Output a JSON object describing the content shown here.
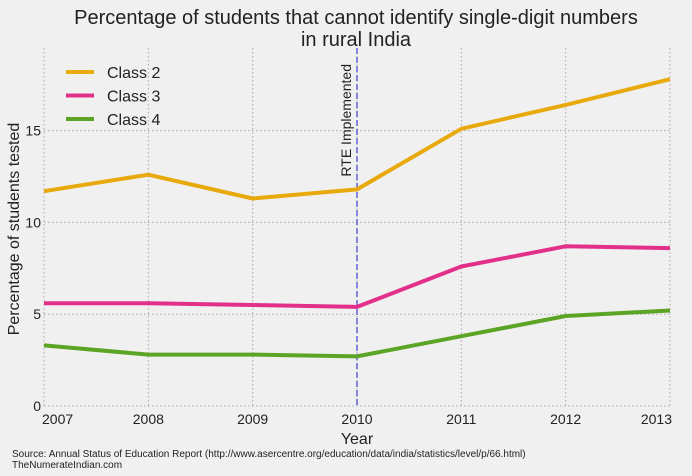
{
  "chart_data": {
    "type": "line",
    "title_line1": "Percentage of students that cannot identify single-digit numbers",
    "title_line2": "in rural India",
    "xlabel": "Year",
    "ylabel": "Percentage of students tested",
    "x": [
      2007,
      2008,
      2009,
      2010,
      2011,
      2012,
      2013
    ],
    "xlim": [
      2007,
      2013
    ],
    "ylim": [
      0,
      19.5
    ],
    "x_ticks": [
      "2007",
      "2008",
      "2009",
      "2010",
      "2011",
      "2012",
      "2013"
    ],
    "y_ticks": [
      0,
      5,
      10,
      15
    ],
    "y_tick_labels": [
      "0",
      "5",
      "10",
      "15"
    ],
    "grid": true,
    "legend_position": "top-left",
    "series": [
      {
        "name": "Class 2",
        "color": "#e8a90c",
        "values": [
          11.7,
          12.6,
          11.3,
          11.8,
          15.1,
          16.4,
          17.8
        ]
      },
      {
        "name": "Class 3",
        "color": "#e2308a",
        "values": [
          5.6,
          5.6,
          5.5,
          5.4,
          7.6,
          8.7,
          8.6
        ]
      },
      {
        "name": "Class 4",
        "color": "#5ca425",
        "values": [
          3.3,
          2.8,
          2.8,
          2.7,
          3.8,
          4.9,
          5.2
        ]
      }
    ],
    "annotation": {
      "text": "RTE Implemented",
      "x": 2010,
      "color": "#3b3fcf"
    }
  },
  "footer": {
    "source_line": "Source: Annual Status of Education Report (http://www.asercentre.org/education/data/india/statistics/level/p/66.html)",
    "site_line": "TheNumerateIndian.com"
  }
}
